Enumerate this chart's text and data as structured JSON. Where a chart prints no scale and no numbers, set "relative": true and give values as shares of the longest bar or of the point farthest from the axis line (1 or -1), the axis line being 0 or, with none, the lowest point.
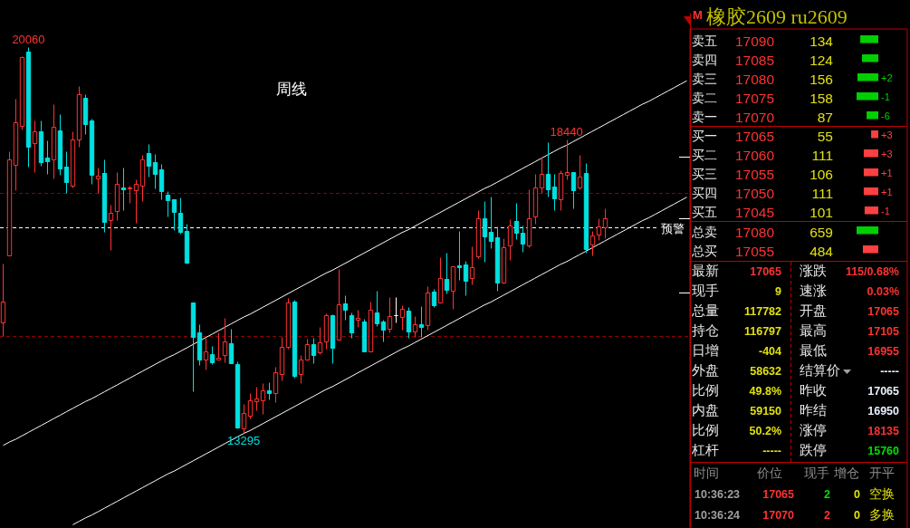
{
  "chart_data": [
    {
      "type": "candlestick",
      "title": "周线",
      "ylim": [
        11650,
        20650
      ],
      "yticks": [
        {
          "value": 15760,
          "label": null
        },
        {
          "value": 17065,
          "label": null
        },
        {
          "value": 18135,
          "label": null
        }
      ],
      "categories": [
        null,
        null,
        null,
        null,
        null,
        null,
        null,
        null,
        null,
        null,
        null,
        null,
        null,
        null,
        null,
        null,
        null,
        null,
        null,
        null,
        null,
        null,
        null,
        null,
        null,
        null,
        null,
        null,
        null,
        null,
        null,
        null,
        null,
        null,
        null,
        null,
        null,
        null,
        null,
        null,
        null,
        null,
        null,
        null,
        null,
        null,
        null,
        null,
        null,
        null,
        null,
        null,
        null,
        null,
        null,
        null,
        null,
        null,
        null,
        null,
        null,
        null,
        null,
        null,
        null,
        null,
        null,
        null,
        null,
        null,
        null,
        null,
        null,
        null,
        null,
        null,
        null,
        null,
        null,
        null,
        null,
        null,
        null,
        null,
        null,
        null,
        null,
        null,
        null,
        null,
        null,
        null,
        null,
        null,
        null,
        null,
        null,
        null,
        null,
        null,
        null,
        null,
        null,
        null,
        null,
        null,
        null,
        null,
        null
      ],
      "ohlc": [
        [
          15240,
          16270,
          15000,
          15600
        ],
        [
          16410,
          18240,
          16410,
          18090
        ],
        [
          18000,
          19160,
          17550,
          18740
        ],
        [
          18680,
          19900,
          18620,
          19890
        ],
        [
          19980,
          20060,
          17970,
          18320
        ],
        [
          18380,
          18780,
          17870,
          18590
        ],
        [
          18590,
          18780,
          17980,
          18050
        ],
        [
          18120,
          18430,
          17840,
          18060
        ],
        [
          18090,
          19060,
          17760,
          18660
        ],
        [
          18600,
          18890,
          17820,
          17930
        ],
        [
          17970,
          18240,
          17510,
          17700
        ],
        [
          17630,
          18590,
          17600,
          18440
        ],
        [
          18440,
          19380,
          18320,
          19240
        ],
        [
          19170,
          19240,
          18540,
          18710
        ],
        [
          18780,
          18810,
          17660,
          17820
        ],
        [
          17760,
          17950,
          17510,
          17810
        ],
        [
          17850,
          18090,
          16820,
          17000
        ],
        [
          17030,
          17300,
          16510,
          17160
        ],
        [
          17190,
          17870,
          17030,
          17660
        ],
        [
          17600,
          17950,
          17200,
          17570
        ],
        [
          17585,
          17630,
          17330,
          17600
        ],
        [
          17550,
          17740,
          16980,
          17660
        ],
        [
          17630,
          18170,
          17360,
          18090
        ],
        [
          18200,
          18360,
          17790,
          17980
        ],
        [
          18050,
          18190,
          17590,
          17840
        ],
        [
          17920,
          18010,
          17390,
          17540
        ],
        [
          17470,
          17540,
          17090,
          17380
        ],
        [
          17390,
          17390,
          16860,
          17170
        ],
        [
          17160,
          17430,
          16790,
          16820
        ],
        [
          16840,
          16970,
          16270,
          16280
        ],
        [
          15590,
          15590,
          14030,
          14980
        ],
        [
          15060,
          15200,
          14490,
          14590
        ],
        [
          14590,
          14970,
          14410,
          14730
        ],
        [
          14680,
          14820,
          14510,
          14540
        ],
        [
          14590,
          15060,
          14590,
          14620
        ],
        [
          14660,
          15320,
          14540,
          14900
        ],
        [
          14870,
          15130,
          14520,
          14520
        ],
        [
          14510,
          14550,
          13380,
          13400
        ],
        [
          13380,
          13810,
          13295,
          13650
        ],
        [
          13600,
          14000,
          13550,
          13870
        ],
        [
          13850,
          14110,
          13700,
          13900
        ],
        [
          13870,
          14170,
          13630,
          14050
        ],
        [
          14050,
          14190,
          13890,
          14000
        ],
        [
          14000,
          14460,
          13840,
          14360
        ],
        [
          14330,
          14980,
          14220,
          14810
        ],
        [
          14810,
          15660,
          14780,
          15590
        ],
        [
          15600,
          15630,
          14270,
          14300
        ],
        [
          14330,
          14660,
          14170,
          14590
        ],
        [
          14590,
          14950,
          14590,
          14860
        ],
        [
          14860,
          14970,
          14520,
          14660
        ],
        [
          14710,
          15160,
          14680,
          14890
        ],
        [
          14900,
          15400,
          14780,
          15360
        ],
        [
          15360,
          15380,
          14520,
          14790
        ],
        [
          14930,
          16170,
          14930,
          15550
        ],
        [
          15570,
          15710,
          15280,
          15460
        ],
        [
          15360,
          15410,
          14970,
          15060
        ],
        [
          15280,
          15460,
          15160,
          15320
        ],
        [
          15250,
          15300,
          14730,
          14730
        ],
        [
          14730,
          15600,
          14730,
          15460
        ],
        [
          15410,
          15790,
          15170,
          15220
        ],
        [
          15250,
          15280,
          14900,
          15110
        ],
        [
          15130,
          15680,
          15060,
          15350
        ],
        [
          15360,
          15680,
          15240,
          15360
        ],
        [
          15330,
          15540,
          15110,
          15470
        ],
        [
          15440,
          15510,
          14970,
          15080
        ],
        [
          15080,
          15350,
          14980,
          15200
        ],
        [
          15200,
          15520,
          14980,
          15160
        ],
        [
          15190,
          15870,
          15110,
          15760
        ],
        [
          15780,
          15820,
          15510,
          15540
        ],
        [
          15590,
          16380,
          15590,
          16010
        ],
        [
          16000,
          16460,
          15740,
          15810
        ],
        [
          15790,
          16220,
          15470,
          16220
        ],
        [
          16240,
          16840,
          15980,
          16200
        ],
        [
          16250,
          16320,
          15710,
          15970
        ],
        [
          16010,
          16570,
          15900,
          16200
        ],
        [
          16390,
          17200,
          16360,
          17060
        ],
        [
          17060,
          17360,
          16300,
          16740
        ],
        [
          16820,
          17440,
          16540,
          16660
        ],
        [
          16730,
          16920,
          15790,
          15930
        ],
        [
          15930,
          16710,
          15920,
          16550
        ],
        [
          16590,
          17050,
          16330,
          16930
        ],
        [
          17010,
          17330,
          16700,
          16810
        ],
        [
          16810,
          16930,
          16470,
          16620
        ],
        [
          16590,
          17570,
          16550,
          17060
        ],
        [
          17090,
          17840,
          16970,
          17600
        ],
        [
          17600,
          18140,
          17510,
          17840
        ],
        [
          17840,
          18390,
          17440,
          17570
        ],
        [
          17620,
          17840,
          17200,
          17410
        ],
        [
          17390,
          17900,
          17200,
          17850
        ],
        [
          17820,
          18440,
          17740,
          17870
        ],
        [
          17870,
          17870,
          17240,
          17550
        ],
        [
          17600,
          18170,
          17570,
          17790
        ],
        [
          17850,
          18030,
          16460,
          16520
        ],
        [
          16600,
          16840,
          16410,
          16760
        ],
        [
          16780,
          17060,
          16680,
          16920
        ],
        [
          16900,
          17240,
          16710,
          17065
        ],
        null,
        null,
        null,
        null,
        null,
        null,
        null,
        null,
        null,
        null,
        null,
        null,
        null
      ],
      "series": [
        {
          "type": "line",
          "color": "#ffffff",
          "values": [
            13080,
            13140,
            13190,
            13250,
            13310,
            13370,
            13430,
            13490,
            13550,
            13610,
            13670,
            13730,
            13790,
            13850,
            13900,
            13960,
            14020,
            14080,
            14140,
            14200,
            14260,
            14320,
            14380,
            14440,
            14500,
            14560,
            14620,
            14670,
            14730,
            14790,
            14850,
            14910,
            14970,
            15030,
            15090,
            15150,
            15210,
            15270,
            15330,
            15380,
            15440,
            15500,
            15560,
            15620,
            15680,
            15740,
            15800,
            15860,
            15920,
            15980,
            16040,
            16100,
            16150,
            16210,
            16270,
            16330,
            16390,
            16450,
            16510,
            16570,
            16630,
            16690,
            16750,
            16810,
            16860,
            16920,
            16980,
            17040,
            17100,
            17160,
            17220,
            17280,
            17340,
            17400,
            17460,
            17520,
            17580,
            17630,
            17690,
            17750,
            17810,
            17870,
            17930,
            17990,
            18050,
            18110,
            18170,
            18230,
            18290,
            18340,
            18400,
            18460,
            18520,
            18580,
            18640,
            18700,
            18760,
            18820,
            18880,
            18940,
            19000,
            19060,
            19110,
            19170,
            19230,
            19290,
            19350,
            19410,
            19470
          ]
        },
        {
          "type": "line",
          "color": "#ffffff",
          "values": [
            null,
            null,
            null,
            null,
            null,
            null,
            null,
            null,
            null,
            null,
            null,
            11690,
            11750,
            11810,
            11860,
            11920,
            11980,
            12040,
            12100,
            12160,
            12220,
            12280,
            12340,
            12400,
            12460,
            12520,
            12580,
            12630,
            12690,
            12750,
            12810,
            12870,
            12930,
            12990,
            13050,
            13110,
            13170,
            13230,
            13290,
            13340,
            13400,
            13460,
            13520,
            13580,
            13640,
            13700,
            13760,
            13820,
            13880,
            13940,
            14000,
            14060,
            14110,
            14170,
            14230,
            14290,
            14350,
            14410,
            14470,
            14530,
            14590,
            14650,
            14710,
            14770,
            14820,
            14880,
            14940,
            15000,
            15060,
            15120,
            15180,
            15240,
            15300,
            15360,
            15420,
            15480,
            15540,
            15590,
            15650,
            15710,
            15770,
            15830,
            15890,
            15950,
            16010,
            16070,
            16130,
            16190,
            16250,
            16300,
            16360,
            16420,
            16480,
            16540,
            16600,
            16660,
            16720,
            16780,
            16840,
            16900,
            16960,
            17020,
            17070,
            17130,
            17190,
            17250,
            17310,
            17370,
            17430
          ]
        }
      ],
      "ref_lines": [
        {
          "axis": "y",
          "value": 17500,
          "color": "#900000",
          "line_style": "dashed"
        },
        {
          "axis": "y",
          "value": 15000,
          "color": "#900000",
          "line_style": "dashed"
        },
        {
          "axis": "y",
          "value": 16900,
          "label": "预警",
          "color": "#ffffff",
          "line_style": "dashed"
        }
      ],
      "annotations": [
        {
          "text": "20060",
          "y": 20060
        },
        {
          "text": "18440",
          "y": 18440
        },
        {
          "text": "13295",
          "y": 13295
        }
      ]
    },
    {
      "type": "bar",
      "orientation": "horizontal",
      "relative": true,
      "title": "橡胶2609 ru2609",
      "categories": [
        "卖五",
        "卖四",
        "卖三",
        "卖二",
        "卖一",
        "买一",
        "买二",
        "买三",
        "买四",
        "买五",
        "总卖",
        "总买"
      ],
      "values": [
        0.83,
        0.75,
        0.96,
        1,
        0.54,
        0.33,
        0.67,
        0.67,
        0.67,
        0.63,
        1,
        0.71
      ],
      "colors": [
        "#00d000",
        "#00d000",
        "#00d000",
        "#00d000",
        "#00d000",
        "#ff4040",
        "#ff4040",
        "#ff4040",
        "#ff4040",
        "#ff4040",
        "#00d000",
        "#ff4040"
      ],
      "annotations": [
        "M",
        "17090",
        "17085",
        "17080",
        "17075",
        "17070",
        "17065",
        "17060",
        "17055",
        "17050",
        "17045",
        "17080",
        "17055",
        "134",
        "124",
        "156",
        "158",
        "87",
        "55",
        "111",
        "106",
        "111",
        "101",
        "659",
        "484",
        "+2",
        "-1",
        "-6",
        "+3",
        "+3",
        "+1",
        "+1",
        "-1"
      ]
    },
    {
      "type": "other",
      "annotations": [
        "最新",
        "17065",
        "涨跌",
        "115/0.68%",
        "现手",
        "9",
        "速涨",
        "0.03%",
        "总量",
        "117782",
        "开盘",
        "17065",
        "持仓",
        "116797",
        "最高",
        "17105",
        "日增",
        "-404",
        "最低",
        "16955",
        "外盘",
        "58632",
        "结算价",
        "-----",
        "比例",
        "49.8%",
        "昨收",
        "17065",
        "内盘",
        "59150",
        "昨结",
        "16950",
        "比例",
        "50.2%",
        "涨停",
        "18135",
        "杠杆",
        "-----",
        "跌停",
        "15760"
      ]
    },
    {
      "type": "other",
      "annotations": [
        "时间",
        "价位",
        "现手",
        "增仓",
        "开平",
        "10:36:23",
        "17065",
        "2",
        "0",
        "空换",
        "10:36:24",
        "17070",
        "2",
        "0",
        "多换"
      ]
    }
  ]
}
